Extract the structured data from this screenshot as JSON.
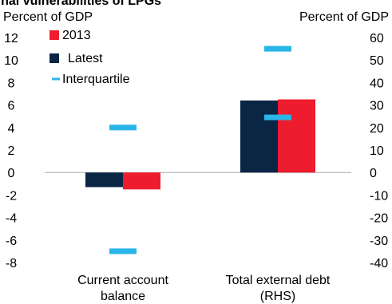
{
  "chart_data": {
    "type": "bar",
    "title": "ernal vulnerabilities of LPGs",
    "left_axis": {
      "title": "Percent of GDP",
      "range": [
        -8,
        12
      ],
      "ticks": [
        12,
        10,
        8,
        6,
        4,
        2,
        0,
        -2,
        -4,
        -6,
        -8
      ],
      "tick_labels": [
        "12",
        "10",
        "8",
        "6",
        "4",
        "2",
        "0",
        "-2",
        "-4",
        "-6",
        "-8"
      ]
    },
    "right_axis": {
      "title": "Percent of GDP",
      "range": [
        -40,
        60
      ],
      "ticks": [
        60,
        50,
        40,
        30,
        20,
        10,
        0,
        -10,
        -20,
        -30,
        -40
      ],
      "tick_labels": [
        "60",
        "50",
        "40",
        "30",
        "20",
        "10",
        "0",
        "-10",
        "-20",
        "-30",
        "-40"
      ]
    },
    "categories": [
      {
        "label_lines": [
          "Current account",
          "balance"
        ],
        "axis": "left"
      },
      {
        "label_lines": [
          "Total external debt",
          "(RHS)"
        ],
        "axis": "right"
      }
    ],
    "series": [
      {
        "name": "2013",
        "type": "bar",
        "color": "#ED1C2E",
        "values": [
          -1.5,
          32.5
        ]
      },
      {
        "name": "Latest",
        "type": "bar",
        "color": "#0B2545",
        "values": [
          -1.3,
          32.0
        ]
      },
      {
        "name": "Interquartile",
        "type": "range-markers",
        "color": "#29B5E8",
        "values": [
          [
            4.0,
            -7.0
          ],
          [
            55.0,
            24.5
          ]
        ]
      }
    ],
    "legend": {
      "placement": "top-left",
      "entries": [
        {
          "name": "2013",
          "symbol": "square",
          "color": "#ED1C2E"
        },
        {
          "name": "Latest",
          "symbol": "square",
          "color": "#0B2545"
        },
        {
          "name": "Interquartile",
          "symbol": "dash",
          "color": "#29B5E8"
        }
      ]
    },
    "grid": false
  }
}
